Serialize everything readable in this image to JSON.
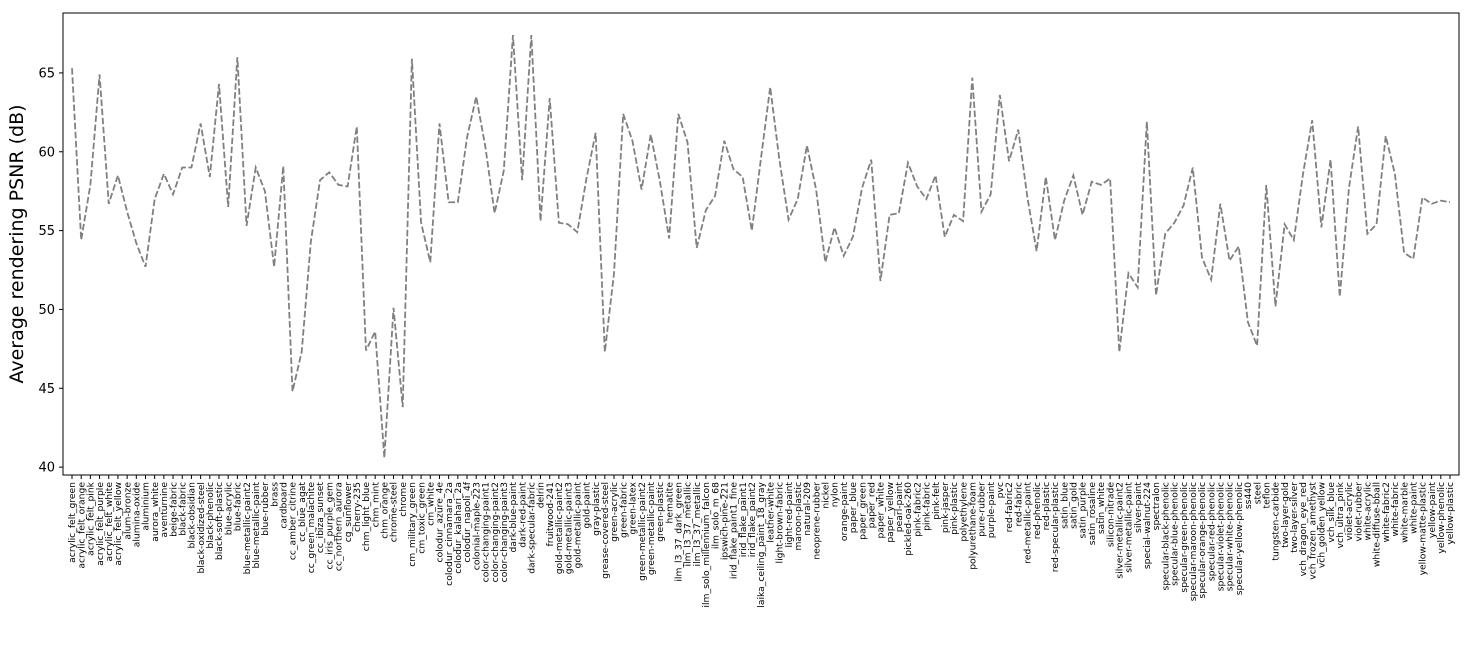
{
  "chart_data": {
    "type": "line",
    "title": "",
    "xlabel": "",
    "ylabel": "Average rendering PSNR (dB)",
    "ylim": [
      39.5,
      68.8
    ],
    "yticks": [
      40,
      45,
      50,
      55,
      60,
      65
    ],
    "grid": false,
    "legend": "none",
    "line_color": "#808080",
    "line_style": "dashed",
    "categories": [
      "acrylic_felt_green",
      "acrylic_felt_orange",
      "acrylic_felt_pink",
      "acrylic_felt_purple",
      "acrylic_felt_white",
      "acrylic_felt_yellow",
      "alum-bronze",
      "alumina-oxide",
      "aluminium",
      "aurora_white",
      "aventurnine",
      "beige-fabric",
      "black-fabric",
      "black-obsidian",
      "black-oxidized-steel",
      "black-phenolic",
      "black-soft-plastic",
      "blue-acrylic",
      "blue-fabric",
      "blue-metallic-paint2",
      "blue-metallic-paint",
      "blue-rubber",
      "brass",
      "cardboard",
      "cc_amber_citrine",
      "cc_blue_agat",
      "cc_green_malachite",
      "cc_ibiza_sunset",
      "cc_iris_purple_gem",
      "cc_northern_aurora",
      "cg_sunflower",
      "cherry-235",
      "chm_light_blue",
      "chm_mint",
      "chm_orange",
      "chrome-steel",
      "chrome",
      "cm_military_green",
      "cm_toxic_green",
      "cm_white",
      "colodur_azure_4e",
      "colodur_cinnamara_2a",
      "colodur_kalahari_2a",
      "colodur_napoli_4f",
      "colonial-maple-223",
      "color-changing-paint1",
      "color-changing-paint2",
      "color-changing-paint3",
      "dark-blue-paint",
      "dark-red-paint",
      "dark-specular-fabric",
      "delrin",
      "fruitwood-241",
      "gold-metallic-paint2",
      "gold-metallic-paint3",
      "gold-metallic-paint",
      "gold-paint",
      "gray-plastic",
      "grease-covered-steel",
      "green-acrylic",
      "green-fabric",
      "green-latex",
      "green-metallic-paint2",
      "green-metallic-paint",
      "green-plastic",
      "hematite",
      "ilm_l3_37_dark_green",
      "ilm_l3_37_metallic",
      "ilm_l3_37_metallic",
      "ilm_solo_millennium_falcon",
      "ilm_solo_m_68",
      "ipswich-pine-221",
      "irid_flake_paint1_fine",
      "irid_flake_paint1",
      "irid_flake_paint2",
      "laika_ceiling_paint_18_gray",
      "leather-white",
      "light-brown-fabric",
      "light-red-paint",
      "maroon-plastic",
      "natural-209",
      "neoprene-rubber",
      "nickel",
      "nylon",
      "orange-paint",
      "paper_blue",
      "paper_green",
      "paper_red",
      "paper_white",
      "paper_yellow",
      "pearl-paint",
      "pickled-oak-260",
      "pink-fabric2",
      "pink-fabric",
      "pink-felt",
      "pink-jasper",
      "pink-plastic",
      "polyethylene",
      "polyurethane-foam",
      "pure-rubber",
      "purple-paint",
      "pvc",
      "red-fabric2",
      "red-fabric",
      "red-metallic-paint",
      "red-phenolic",
      "red-plastic",
      "red-specular-plastic",
      "satin_blue",
      "satin_gold",
      "satin_purple",
      "satin_rosaline",
      "satin_white",
      "silicon-nitrade",
      "silver-metallic-paint2",
      "silver-metallic-paint",
      "silver-paint",
      "special-walnut-224",
      "spectralon",
      "specular-black-phenolic",
      "specular-blue-phenolic",
      "specular-green-phenolic",
      "specular-maroon-phenolic",
      "specular-orange-phenolic",
      "specular-red-phenolic",
      "specular-violet-phenolic",
      "specular-white-phenolic",
      "specular-yellow-phenolic",
      "ss440",
      "steel",
      "teflon",
      "tungsten-carbide",
      "two-layer-gold",
      "two-layer-silver",
      "vch_dragon_eye_red",
      "vch_frozen_amethyst",
      "vch_golden_yellow",
      "vch_silk_blue",
      "vch_ultra_pink",
      "violet-acrylic",
      "violet-rubber",
      "white-acrylic",
      "white-diffuse-bball",
      "white-fabric2",
      "white-fabric",
      "white-marble",
      "white-paint",
      "yellow-matte-plastic",
      "yellow-paint",
      "yellow-phenolic",
      "yellow-plastic"
    ],
    "series": [
      {
        "values": [
          65.3,
          54.4,
          57.9,
          64.9,
          56.7,
          58.5,
          56.2,
          54.2,
          52.7,
          57.0,
          58.6,
          57.3,
          59.0,
          59.0,
          61.8,
          58.4,
          64.3,
          56.5,
          66.0,
          55.3,
          59.0,
          57.5,
          52.7,
          59.1,
          44.8,
          47.3,
          54.3,
          58.2,
          58.7,
          57.9,
          57.8,
          61.6,
          47.4,
          48.6,
          40.6,
          50.1,
          43.8,
          65.9,
          55.5,
          53.0,
          61.8,
          56.8,
          56.8,
          60.9,
          63.5,
          60.3,
          56.1,
          58.8,
          67.4,
          58.2,
          67.4,
          55.6,
          63.4,
          55.5,
          55.4,
          54.9,
          58.3,
          61.2,
          47.3,
          52.3,
          62.4,
          60.7,
          57.6,
          61.1,
          58.1,
          54.5,
          62.4,
          60.6,
          53.9,
          56.3,
          57.2,
          60.7,
          58.9,
          58.4,
          55.0,
          59.6,
          64.1,
          59.5,
          55.7,
          57.0,
          60.4,
          57.6,
          53.0,
          55.2,
          53.4,
          54.6,
          57.7,
          59.5,
          51.8,
          56.0,
          56.1,
          59.3,
          57.8,
          57.0,
          58.5,
          54.6,
          56.0,
          55.6,
          64.7,
          56.2,
          57.3,
          63.6,
          59.4,
          61.4,
          57.1,
          53.7,
          58.4,
          54.4,
          56.9,
          58.5,
          56.0,
          58.1,
          57.9,
          58.3,
          47.3,
          52.3,
          51.4,
          61.9,
          50.9,
          54.8,
          55.5,
          56.6,
          59.0,
          53.3,
          51.9,
          56.7,
          53.1,
          54.0,
          49.2,
          47.7,
          57.9,
          50.2,
          55.4,
          54.4,
          58.6,
          62.0,
          55.2,
          59.5,
          50.8,
          57.7,
          61.6,
          54.8,
          55.4,
          61.0,
          58.6,
          53.6,
          53.2,
          57.1,
          56.7,
          56.9,
          56.8
        ]
      }
    ]
  }
}
